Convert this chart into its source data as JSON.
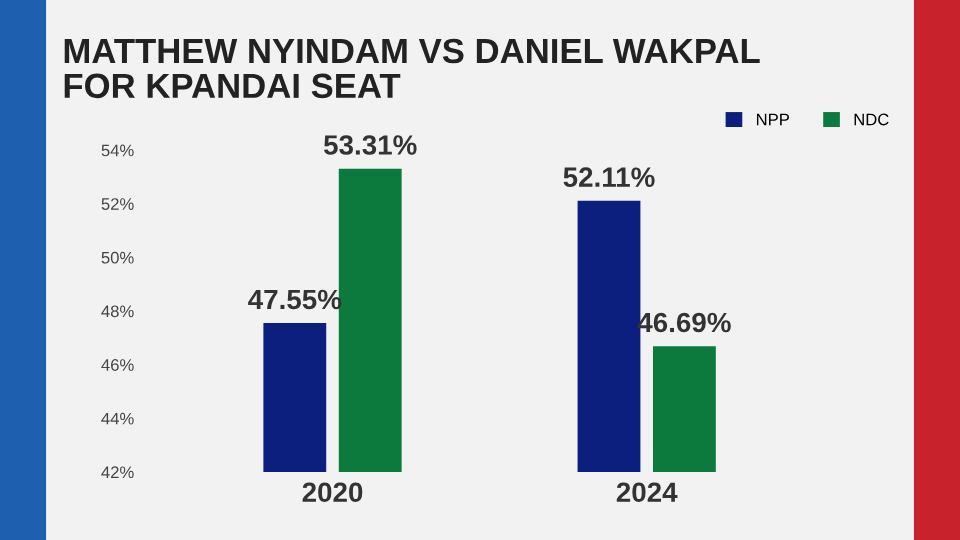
{
  "chart_data": {
    "type": "bar",
    "title": "MATTHEW NYINDAM VS DANIEL WAKPAL\nFOR KPANDAI SEAT",
    "categories": [
      "2020",
      "2024"
    ],
    "series": [
      {
        "name": "NPP",
        "color": "#0c1f7e",
        "values": [
          47.55,
          52.11
        ],
        "value_labels": [
          "47.55%",
          "52.11%"
        ]
      },
      {
        "name": "NDC",
        "color": "#0b7a3c",
        "values": [
          53.31,
          46.69
        ],
        "value_labels": [
          "53.31%",
          "46.69%"
        ]
      }
    ],
    "ylim": [
      42,
      54
    ],
    "yticks": [
      {
        "value": 42,
        "label": "42%"
      },
      {
        "value": 44,
        "label": "44%"
      },
      {
        "value": 46,
        "label": "46%"
      },
      {
        "value": 48,
        "label": "48%"
      },
      {
        "value": 50,
        "label": "50%"
      },
      {
        "value": 52,
        "label": "52%"
      },
      {
        "value": 54,
        "label": "54%"
      }
    ],
    "legend": "top right",
    "grid": false
  }
}
